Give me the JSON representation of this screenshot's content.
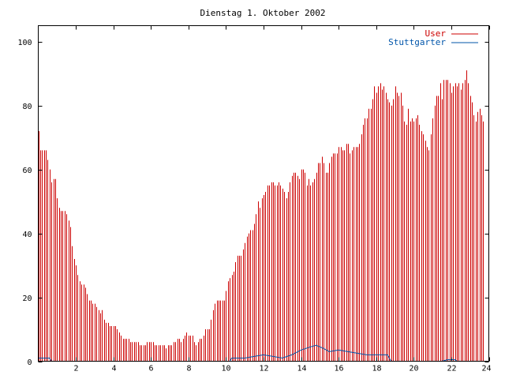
{
  "chart_data": {
    "type": "bar",
    "title": "Dienstag 1. Oktober 2002",
    "xlabel": "",
    "ylabel": "",
    "xlim": [
      0,
      24
    ],
    "ylim": [
      0,
      105
    ],
    "x_ticks": [
      2,
      4,
      6,
      8,
      10,
      12,
      14,
      16,
      18,
      20,
      22,
      24
    ],
    "y_ticks": [
      0,
      20,
      40,
      60,
      80,
      100
    ],
    "grid": false,
    "legend_position": "top-right",
    "colors": {
      "user": "#cc0000",
      "stuttgarter": "#0055aa",
      "frame": "#000000"
    },
    "series": [
      {
        "name": "User",
        "style": "impulses",
        "interval_hours": 0.1,
        "values": [
          72,
          66,
          66,
          66,
          66,
          63,
          60,
          56,
          57,
          57,
          51,
          48,
          47,
          47,
          47,
          46,
          44,
          42,
          36,
          32,
          30,
          27,
          25,
          24,
          24,
          23,
          21,
          19,
          19,
          18,
          18,
          17,
          16,
          15,
          16,
          13,
          12,
          12,
          11,
          11,
          11,
          11,
          10,
          9,
          8,
          7,
          7,
          7,
          7,
          6,
          6,
          6,
          6,
          6,
          5,
          5,
          5,
          5,
          6,
          6,
          6,
          6,
          5,
          5,
          5,
          5,
          5,
          5,
          4,
          5,
          5,
          5,
          6,
          6,
          7,
          7,
          6,
          7,
          8,
          9,
          8,
          8,
          8,
          6,
          5,
          6,
          7,
          7,
          8,
          10,
          10,
          10,
          13,
          16,
          18,
          19,
          19,
          19,
          19,
          19,
          22,
          25,
          26,
          27,
          28,
          31,
          33,
          33,
          33,
          35,
          37,
          39,
          40,
          41,
          41,
          43,
          46,
          50,
          48,
          51,
          52,
          53,
          55,
          55,
          56,
          56,
          55,
          55,
          56,
          55,
          54,
          53,
          51,
          53,
          56,
          58,
          59,
          59,
          58,
          57,
          60,
          60,
          59,
          55,
          57,
          55,
          56,
          57,
          59,
          62,
          62,
          64,
          62,
          59,
          59,
          62,
          64,
          65,
          65,
          65,
          67,
          67,
          66,
          66,
          68,
          68,
          65,
          66,
          67,
          67,
          67,
          68,
          71,
          74,
          76,
          76,
          79,
          79,
          82,
          86,
          84,
          86,
          87,
          85,
          86,
          84,
          82,
          81,
          80,
          82,
          86,
          84,
          83,
          84,
          80,
          75,
          74,
          79,
          75,
          76,
          75,
          76,
          77,
          74,
          72,
          71,
          69,
          67,
          66,
          71,
          76,
          80,
          83,
          83,
          87,
          82,
          88,
          88,
          88,
          87,
          84,
          86,
          87,
          86,
          87,
          85,
          87,
          88,
          91,
          87,
          83,
          81,
          77,
          75,
          78,
          79,
          77,
          75
        ]
      },
      {
        "name": "Stuttgarter",
        "style": "line",
        "points": [
          [
            0,
            1
          ],
          [
            0.6,
            1
          ],
          [
            0.7,
            0
          ],
          [
            10.2,
            0
          ],
          [
            10.3,
            1
          ],
          [
            11,
            1
          ],
          [
            11.5,
            1.5
          ],
          [
            12,
            2
          ],
          [
            12.5,
            1.5
          ],
          [
            13,
            1
          ],
          [
            13.5,
            2
          ],
          [
            14,
            3.5
          ],
          [
            14.5,
            4.5
          ],
          [
            14.8,
            5
          ],
          [
            15.2,
            4
          ],
          [
            15.5,
            3
          ],
          [
            16,
            3.5
          ],
          [
            16.5,
            3
          ],
          [
            17,
            2.5
          ],
          [
            17.5,
            2
          ],
          [
            18,
            2
          ],
          [
            18.6,
            2
          ],
          [
            18.8,
            0
          ],
          [
            21.5,
            0
          ],
          [
            21.8,
            0.5
          ],
          [
            22.2,
            0.5
          ],
          [
            22.3,
            0
          ],
          [
            24,
            0
          ]
        ]
      }
    ]
  }
}
